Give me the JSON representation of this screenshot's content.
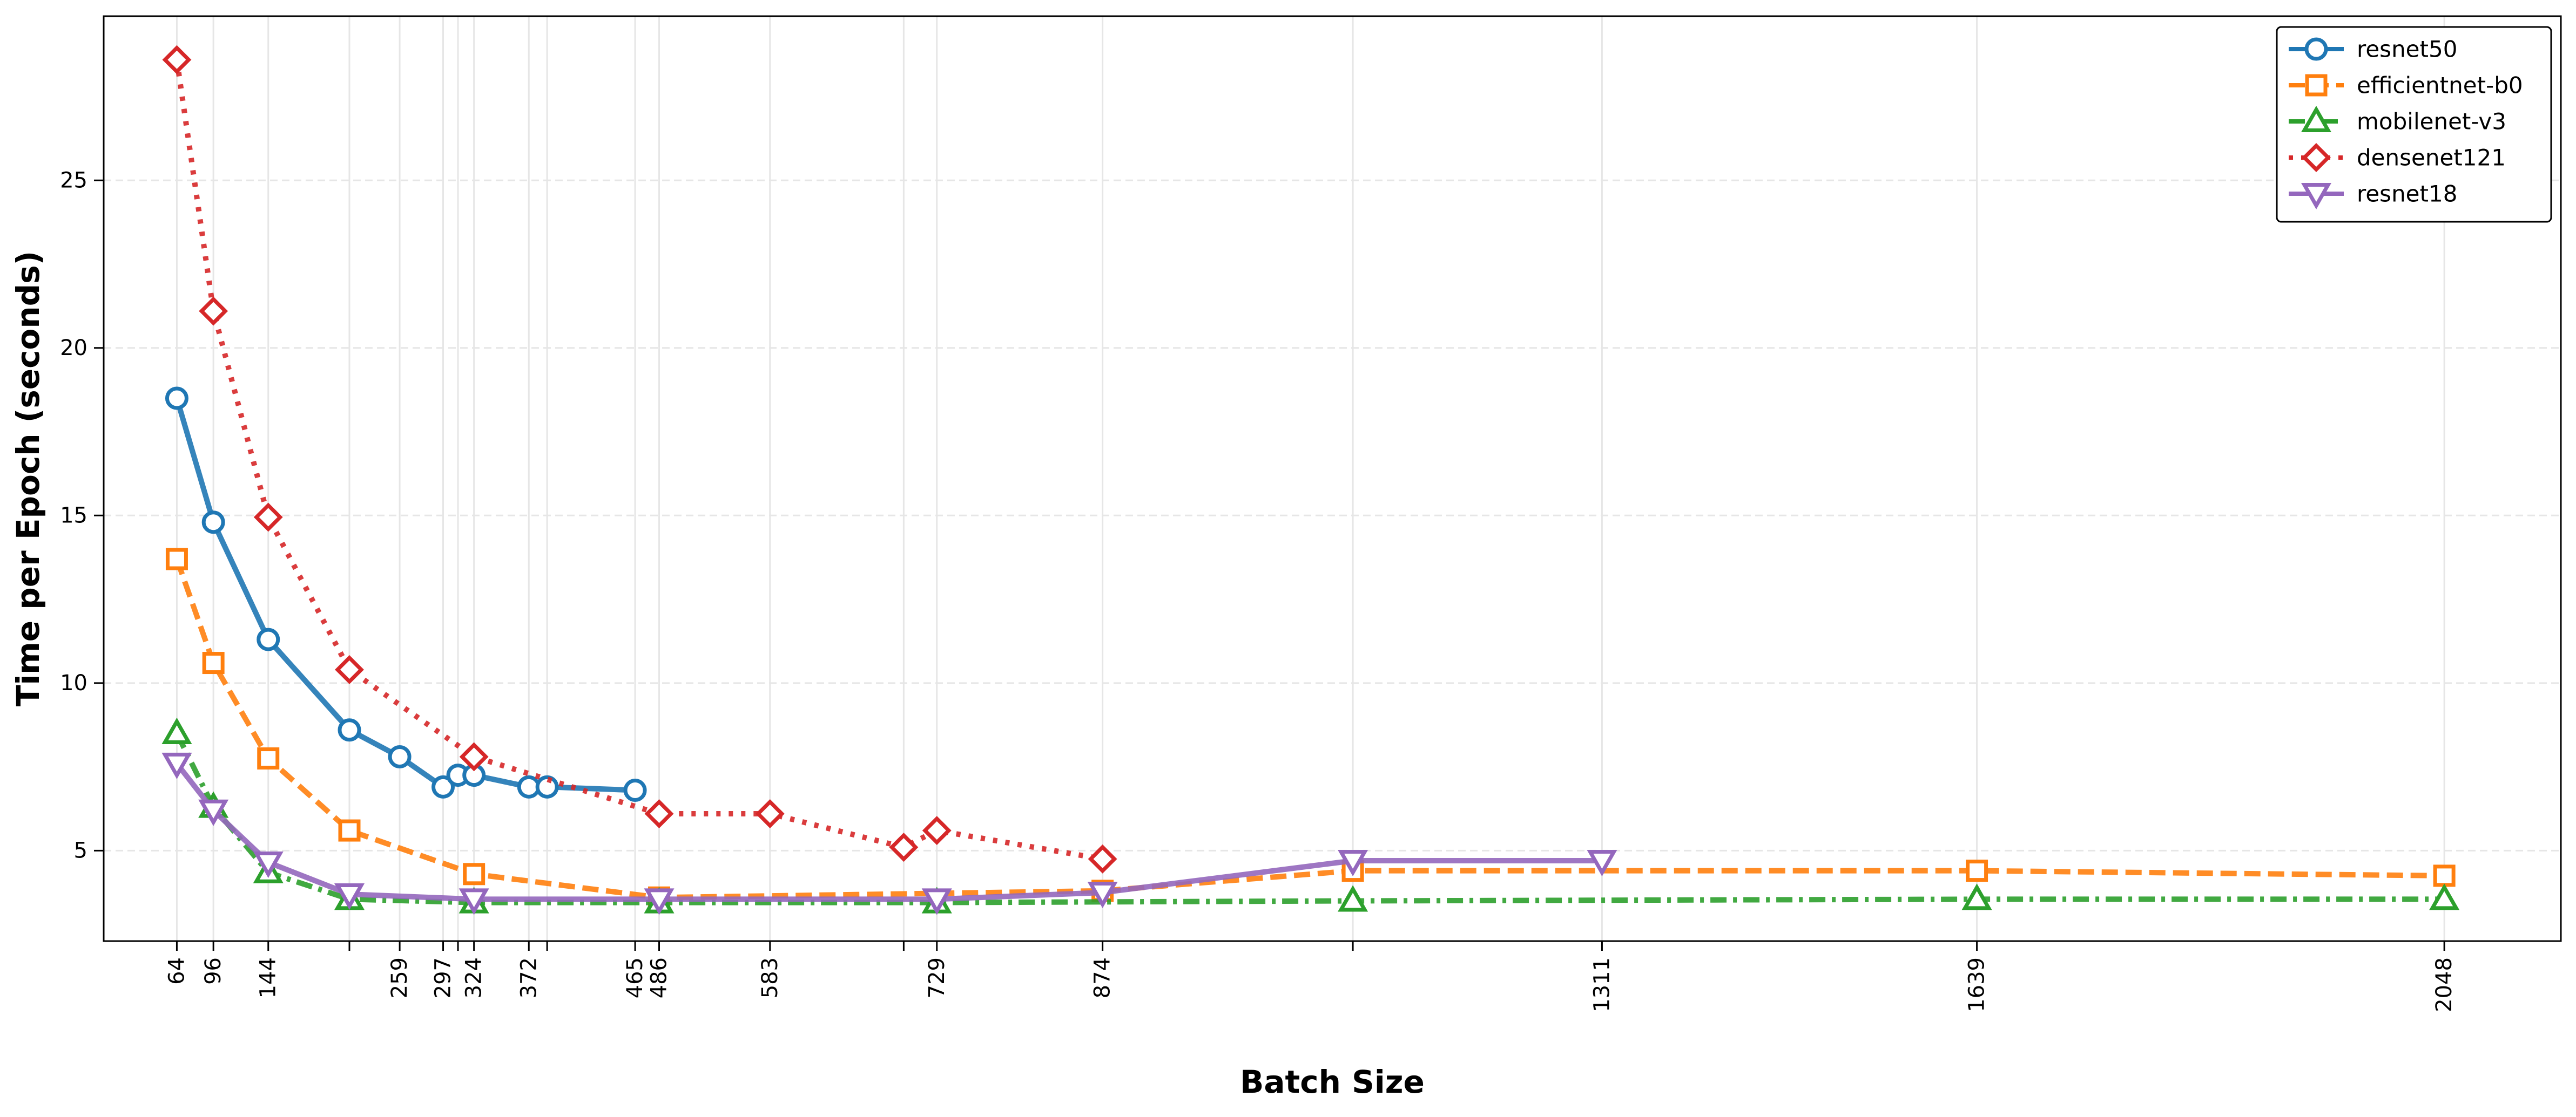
{
  "chart_data": {
    "type": "line",
    "title": "",
    "xlabel": "Batch Size",
    "ylabel": "Time per Epoch (seconds)",
    "xlim": [
      0,
      2150
    ],
    "ylim": [
      2.3,
      29.9
    ],
    "grid": true,
    "legend_position": "top-right",
    "x_ticks": [
      64,
      96,
      144,
      215,
      259,
      297,
      310,
      324,
      372,
      388,
      465,
      486,
      583,
      700,
      729,
      874,
      1093,
      1311,
      1639,
      2048
    ],
    "x_tick_labels": [
      "64",
      "96",
      "144",
      "",
      "259",
      "297",
      "",
      "324",
      "372",
      "",
      "465",
      "486",
      "583",
      "",
      "729",
      "874",
      "",
      "1311",
      "1639",
      "2048"
    ],
    "y_ticks": [
      5,
      10,
      15,
      20,
      25
    ],
    "y_tick_labels": [
      "5",
      "10",
      "15",
      "20",
      "25"
    ],
    "series": [
      {
        "name": "resnet50",
        "color": "#1f77b4",
        "marker": "circle",
        "line_style": "solid",
        "points": [
          [
            64,
            18.5
          ],
          [
            96,
            14.8
          ],
          [
            144,
            11.3
          ],
          [
            215,
            8.6
          ],
          [
            259,
            7.8
          ],
          [
            297,
            6.9
          ],
          [
            310,
            7.25
          ],
          [
            324,
            7.25
          ],
          [
            372,
            6.9
          ],
          [
            388,
            6.9
          ],
          [
            465,
            6.8
          ]
        ]
      },
      {
        "name": "efficientnet-b0",
        "color": "#ff7f0e",
        "marker": "square",
        "line_style": "dashed",
        "points": [
          [
            64,
            13.7
          ],
          [
            96,
            10.6
          ],
          [
            144,
            7.75
          ],
          [
            215,
            5.6
          ],
          [
            324,
            4.3
          ],
          [
            486,
            3.6
          ],
          [
            874,
            3.8
          ],
          [
            1093,
            4.4
          ],
          [
            1639,
            4.4
          ],
          [
            2048,
            4.25
          ]
        ]
      },
      {
        "name": "mobilenet-v3",
        "color": "#2ca02c",
        "marker": "triangle-up",
        "line_style": "dashdot",
        "points": [
          [
            64,
            8.5
          ],
          [
            96,
            6.3
          ],
          [
            144,
            4.35
          ],
          [
            215,
            3.55
          ],
          [
            324,
            3.45
          ],
          [
            486,
            3.45
          ],
          [
            729,
            3.45
          ],
          [
            1093,
            3.5
          ],
          [
            1639,
            3.55
          ],
          [
            2048,
            3.55
          ]
        ]
      },
      {
        "name": "densenet121",
        "color": "#d62728",
        "marker": "diamond",
        "line_style": "dotted",
        "points": [
          [
            64,
            28.6
          ],
          [
            96,
            21.1
          ],
          [
            144,
            14.95
          ],
          [
            215,
            10.4
          ],
          [
            324,
            7.8
          ],
          [
            486,
            6.1
          ],
          [
            583,
            6.1
          ],
          [
            700,
            5.1
          ],
          [
            729,
            5.6
          ],
          [
            874,
            4.75
          ]
        ]
      },
      {
        "name": "resnet18",
        "color": "#9467bd",
        "marker": "triangle-down",
        "line_style": "solid",
        "points": [
          [
            64,
            7.6
          ],
          [
            96,
            6.2
          ],
          [
            144,
            4.65
          ],
          [
            215,
            3.7
          ],
          [
            324,
            3.55
          ],
          [
            486,
            3.55
          ],
          [
            729,
            3.55
          ],
          [
            874,
            3.75
          ],
          [
            1093,
            4.7
          ],
          [
            1311,
            4.7
          ]
        ]
      }
    ]
  }
}
